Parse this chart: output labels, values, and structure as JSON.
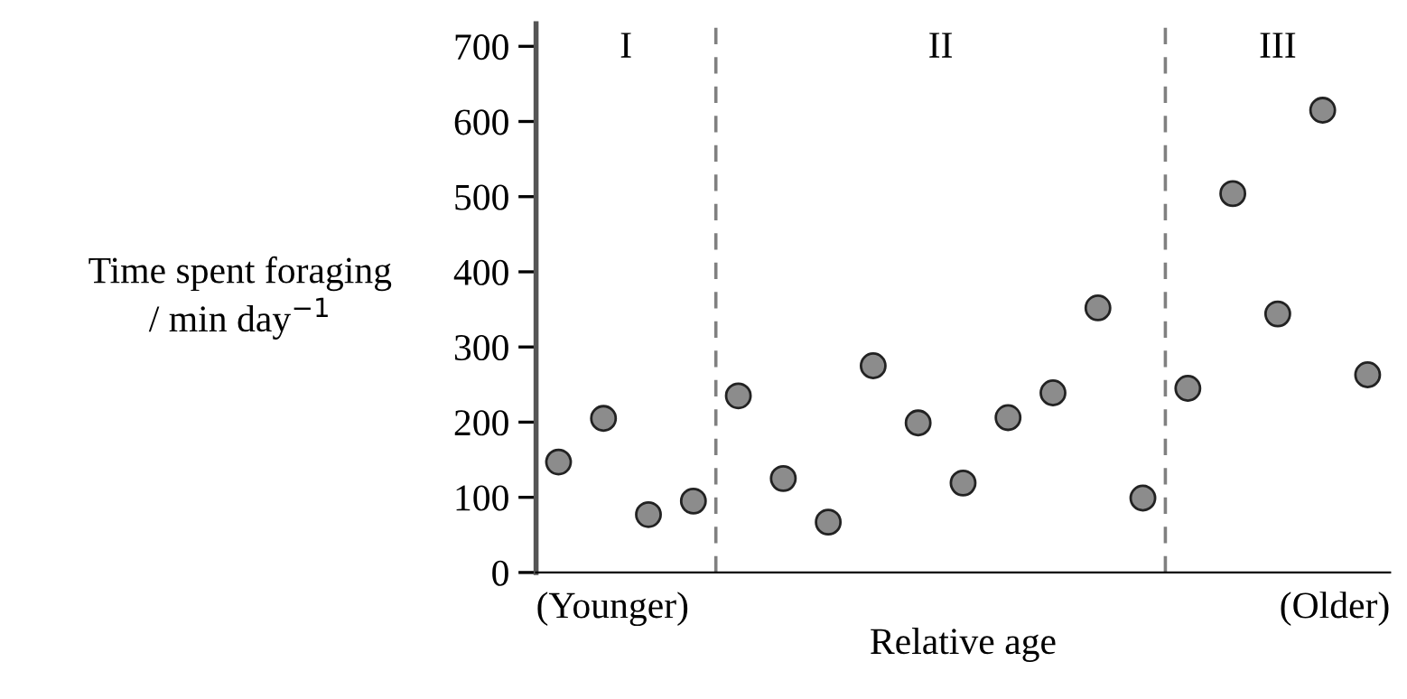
{
  "chart_data": {
    "type": "scatter",
    "xlabel": "Relative age",
    "ylabel": "Time spent foraging\n/ min day$^{−1}$",
    "categories": [
      null,
      null,
      null,
      null,
      null,
      null,
      null,
      null,
      null,
      null,
      null,
      null,
      null,
      null,
      null,
      null,
      null,
      null,
      null
    ],
    "series": [
      {
        "color": "#8c8c8c",
        "values": [
          147,
          205,
          77,
          95,
          235,
          125,
          67,
          275,
          199,
          119,
          206,
          239,
          352,
          99,
          245,
          504,
          344,
          615,
          263
        ]
      }
    ],
    "ylim": [
      0,
      730
    ],
    "yticks": [
      0,
      100,
      200,
      300,
      400,
      500,
      600,
      700
    ],
    "annotations": [
      "I",
      "II",
      "III",
      "(Younger)",
      "(Older)"
    ],
    "marker": "circle",
    "grid": false,
    "legend": false
  }
}
